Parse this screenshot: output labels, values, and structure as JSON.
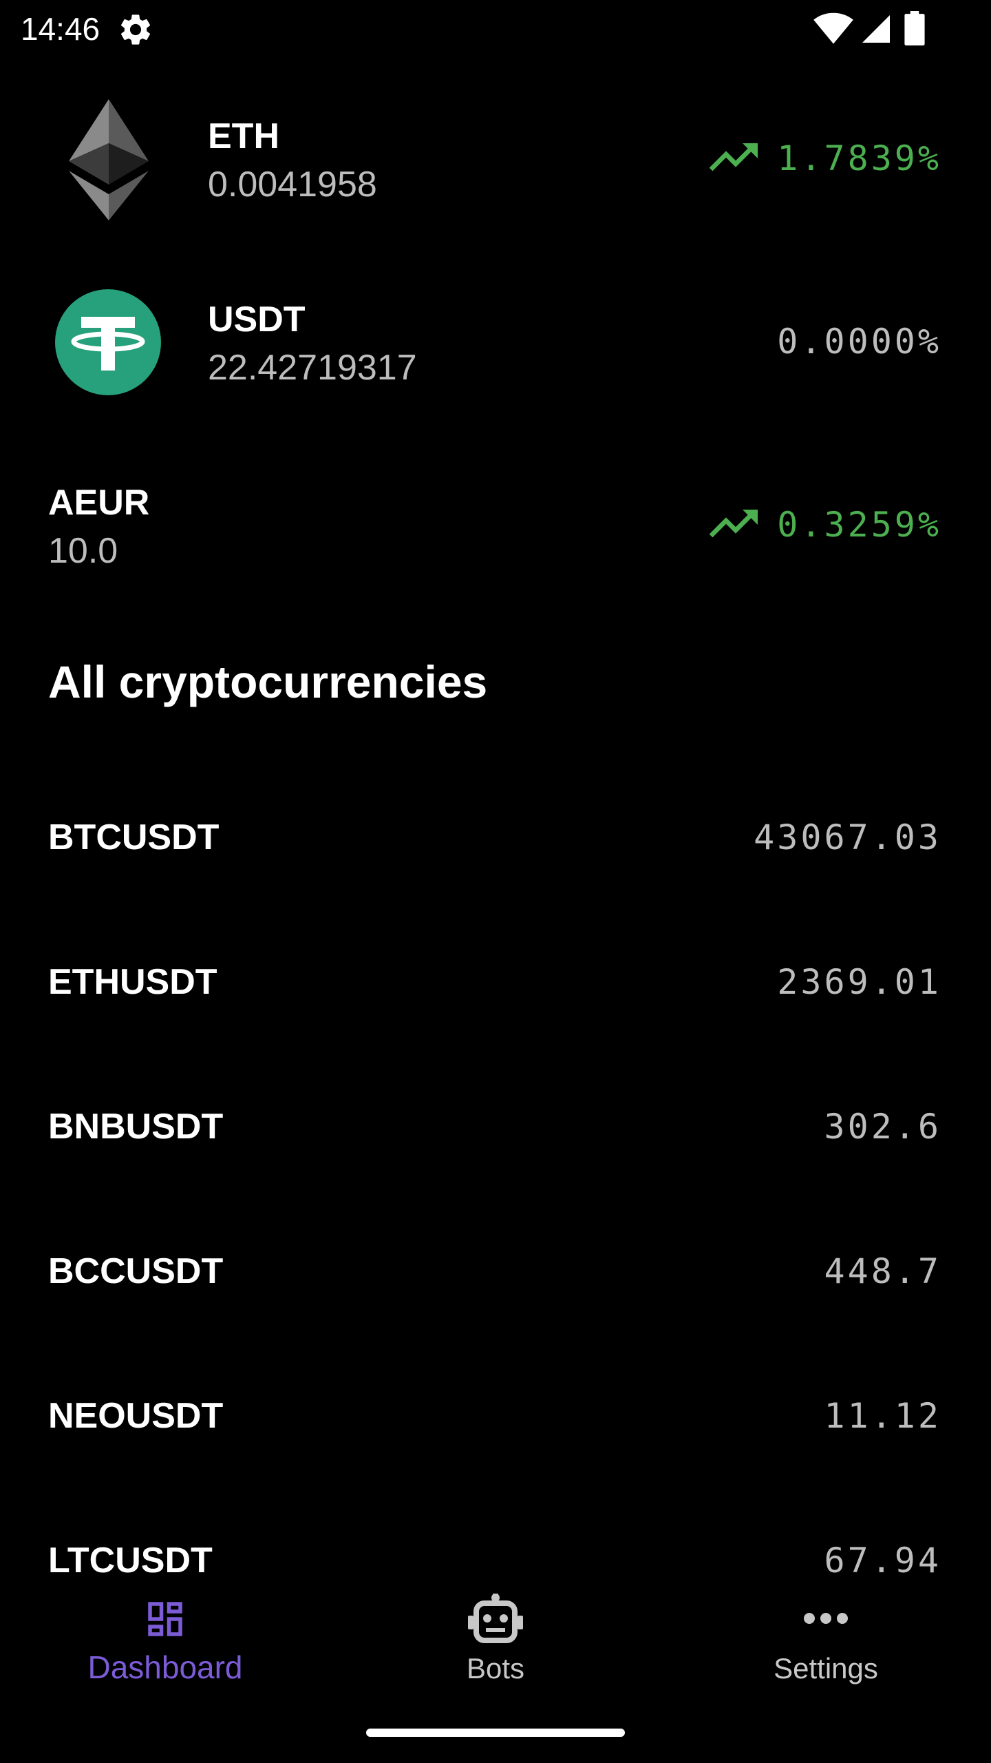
{
  "status_bar": {
    "time": "14:46",
    "icons": [
      "gear-icon",
      "wifi-icon",
      "signal-icon",
      "battery-icon"
    ]
  },
  "holdings": [
    {
      "symbol": "ETH",
      "amount": "0.0041958",
      "change": "1.7839%",
      "trend": "up",
      "icon": "ethereum-logo"
    },
    {
      "symbol": "USDT",
      "amount": "22.42719317",
      "change": "0.0000%",
      "trend": "flat",
      "icon": "tether-logo"
    },
    {
      "symbol": "AEUR",
      "amount": "10.0",
      "change": "0.3259%",
      "trend": "up",
      "icon": null
    }
  ],
  "all_crypto": {
    "title": "All cryptocurrencies",
    "pairs": [
      {
        "symbol": "BTCUSDT",
        "price": "43067.03"
      },
      {
        "symbol": "ETHUSDT",
        "price": "2369.01"
      },
      {
        "symbol": "BNBUSDT",
        "price": "302.6"
      },
      {
        "symbol": "BCCUSDT",
        "price": "448.7"
      },
      {
        "symbol": "NEOUSDT",
        "price": "11.12"
      },
      {
        "symbol": "LTCUSDT",
        "price": "67.94"
      }
    ]
  },
  "bottom_nav": {
    "items": [
      {
        "label": "Dashboard",
        "icon": "dashboard-icon",
        "active": true
      },
      {
        "label": "Bots",
        "icon": "robot-icon",
        "active": false
      },
      {
        "label": "Settings",
        "icon": "more-dots-icon",
        "active": false
      }
    ]
  },
  "colors": {
    "background": "#000000",
    "positive": "#4caf50",
    "accent": "#7c5cd6",
    "muted_text": "#bdbdbd",
    "tether_green": "#26a17b"
  }
}
